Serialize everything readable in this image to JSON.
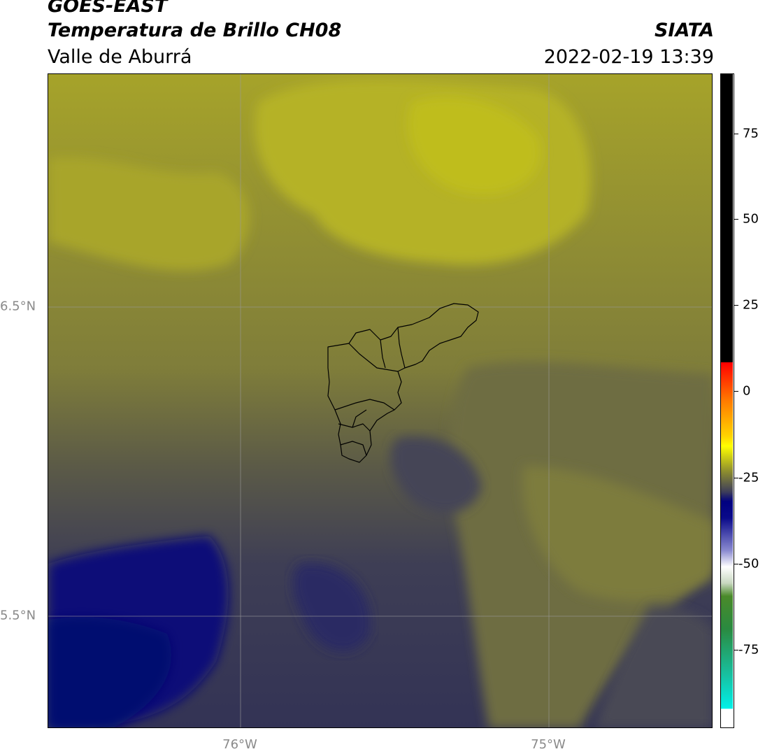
{
  "header": {
    "satellite": "GOES-EAST",
    "product": "Temperatura de Brillo CH08",
    "region": "Valle de Aburrá",
    "org": "SIATA",
    "datetime": "2022-02-19 13:39"
  },
  "map": {
    "lat_labels": [
      "6.5°N",
      "5.5°N"
    ],
    "lon_labels": [
      "76°W",
      "75°W"
    ],
    "gridlines": true,
    "boundary": "Valle de Aburrá municipalities"
  },
  "colorbar": {
    "ticks": [
      "75",
      "50",
      "25",
      "0",
      "-25",
      "-50",
      "-75"
    ],
    "colors": {
      "black": "#000000",
      "red": "#ff2a00",
      "orange": "#ff8c00",
      "yellow": "#ffff00",
      "olive": "#7a7a3c",
      "navy": "#000080",
      "white": "#f4f4f4",
      "green": "#3a8a2a",
      "cyan": "#00e5e5"
    }
  }
}
